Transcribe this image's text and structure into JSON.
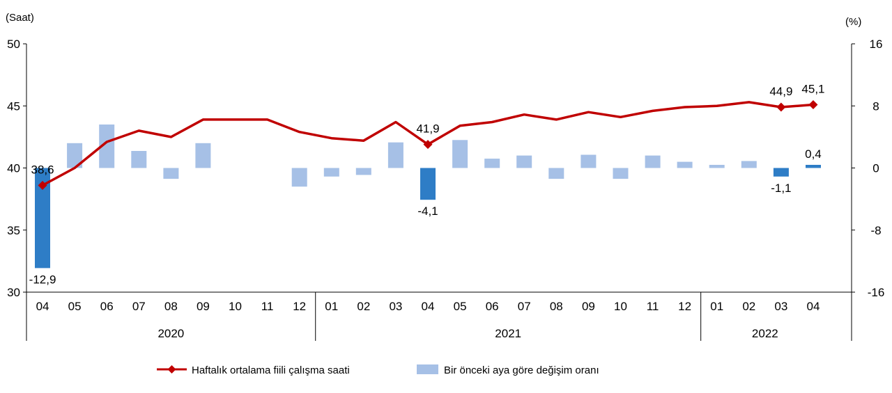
{
  "chart_data": {
    "type": "bar+line",
    "left_axis_unit": "(Saat)",
    "right_axis_unit": "(%)",
    "left_ylim": [
      30,
      50
    ],
    "left_ticks": [
      "30",
      "35",
      "40",
      "45",
      "50"
    ],
    "right_ylim": [
      -16,
      16
    ],
    "right_ticks": [
      "-16",
      "-8",
      "0",
      "8",
      "16"
    ],
    "categories": [
      "04",
      "05",
      "06",
      "07",
      "08",
      "09",
      "10",
      "11",
      "12",
      "01",
      "02",
      "03",
      "04",
      "05",
      "06",
      "07",
      "08",
      "09",
      "10",
      "11",
      "12",
      "01",
      "02",
      "03",
      "04"
    ],
    "years": [
      {
        "label": "2020",
        "start": 0,
        "end": 8
      },
      {
        "label": "2021",
        "start": 9,
        "end": 20
      },
      {
        "label": "2022",
        "start": 21,
        "end": 24
      }
    ],
    "series": [
      {
        "name": "Haftalık ortalama fiili çalışma saati",
        "type": "line",
        "axis": "left",
        "color": "#c00000",
        "values": [
          38.6,
          40.0,
          42.1,
          43.0,
          42.5,
          43.9,
          43.9,
          43.9,
          42.9,
          42.4,
          42.2,
          43.7,
          41.9,
          43.4,
          43.7,
          44.3,
          43.9,
          44.5,
          44.1,
          44.6,
          44.9,
          45.0,
          45.3,
          44.9,
          45.1
        ]
      },
      {
        "name": "Bir önceki aya göre değişim oranı",
        "type": "bar",
        "axis": "right",
        "color": "#a6c0e6",
        "highlight_color": "#2e7dc6",
        "values": [
          -12.9,
          3.2,
          5.6,
          2.2,
          -1.4,
          3.2,
          0.0,
          0.0,
          -2.4,
          -1.1,
          -0.9,
          3.3,
          -4.1,
          3.6,
          1.2,
          1.6,
          -1.4,
          1.7,
          -1.4,
          1.6,
          0.8,
          0.4,
          0.9,
          -1.1,
          0.4
        ]
      }
    ],
    "annotations": [
      {
        "index": 0,
        "line_label": "38,6",
        "bar_label": "-12,9"
      },
      {
        "index": 12,
        "line_label": "41,9",
        "bar_label": "-4,1"
      },
      {
        "index": 23,
        "line_label": "44,9",
        "bar_label": "-1,1"
      },
      {
        "index": 24,
        "line_label": "45,1",
        "bar_label": "0,4"
      }
    ],
    "highlighted_bars": [
      0,
      12,
      23,
      24
    ],
    "legend": {
      "placement": "bottom",
      "entries": [
        "Haftalık ortalama fiili çalışma saati",
        "Bir önceki aya göre değişim oranı"
      ]
    },
    "grid": false
  }
}
